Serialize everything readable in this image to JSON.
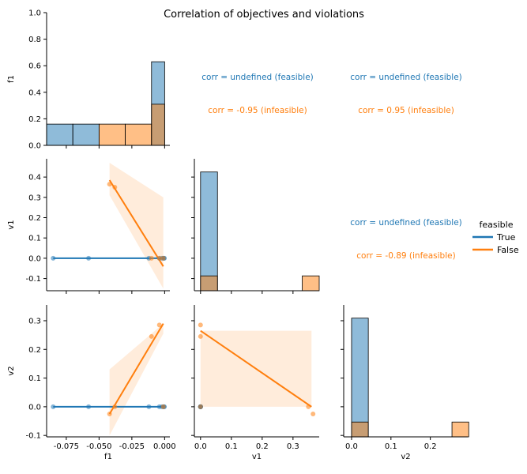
{
  "chart_data": {
    "type": "pairplot",
    "title": "Correlation of objectives and violations",
    "variables": [
      "f1",
      "v1",
      "v2"
    ],
    "legend": {
      "title": "feasible",
      "placement": "right",
      "entries": [
        {
          "label": "True",
          "color": "#1f77b4"
        },
        {
          "label": "False",
          "color": "#ff7f0e"
        }
      ]
    },
    "colors": {
      "feasible": "#1f77b4",
      "infeasible": "#ff7f0e"
    },
    "points": {
      "feasible": {
        "f1": [
          -0.085,
          -0.058,
          -0.012,
          -0.004,
          -0.002,
          -0.001,
          -0.0005,
          -0.0002
        ],
        "v1": [
          0,
          0,
          0,
          0,
          0,
          0,
          0,
          0
        ],
        "v2": [
          0,
          0,
          0,
          0,
          0,
          0,
          0,
          0
        ]
      },
      "infeasible": {
        "f1": [
          -0.042,
          -0.038,
          -0.01,
          -0.004,
          -0.001
        ],
        "v1": [
          0.365,
          0.35,
          0,
          0,
          0
        ],
        "v2": [
          -0.025,
          0.0,
          0.245,
          0.285,
          0.0
        ]
      }
    },
    "histograms": {
      "f1": {
        "bins": [
          -0.09,
          -0.07,
          -0.05,
          -0.03,
          -0.01,
          0.0
        ],
        "feasible": [
          0.16,
          0.16,
          0,
          0,
          0.63
        ],
        "infeasible": [
          0,
          0,
          0.16,
          0.16,
          0.31
        ],
        "ylim": [
          0,
          1.0
        ],
        "yticks": [
          "0.0",
          "0.2",
          "0.4",
          "0.6",
          "0.8",
          "1.0"
        ]
      },
      "v1": {
        "bins": [
          0.0,
          0.055,
          0.11,
          0.165,
          0.22,
          0.275,
          0.33,
          0.385
        ],
        "feasible": [
          8,
          0,
          0,
          0,
          0,
          0,
          0
        ],
        "infeasible": [
          1,
          0,
          0,
          0,
          0,
          0,
          1
        ]
      },
      "v2": {
        "bins": [
          0.0,
          0.0425,
          0.085,
          0.1275,
          0.17,
          0.2125,
          0.255,
          0.2975
        ],
        "feasible": [
          8,
          0,
          0,
          0,
          0,
          0,
          0
        ],
        "infeasible": [
          1,
          0,
          0,
          0,
          0,
          0,
          1
        ]
      }
    },
    "regressions": {
      "v1_vs_f1": {
        "feasible": {
          "x": [
            -0.085,
            0.0
          ],
          "y": [
            0.0,
            0.0
          ]
        },
        "infeasible": {
          "x": [
            -0.042,
            -0.001
          ],
          "y": [
            0.385,
            -0.04
          ],
          "band_upper": [
            0.47,
            0.3
          ],
          "band_lower": [
            0.31,
            -0.15
          ]
        }
      },
      "v2_vs_f1": {
        "feasible": {
          "x": [
            -0.085,
            0.0
          ],
          "y": [
            0.0,
            0.0
          ]
        },
        "infeasible": {
          "x": [
            -0.042,
            -0.001
          ],
          "y": [
            -0.025,
            0.29
          ],
          "band_upper": [
            0.13,
            0.29
          ],
          "band_lower": [
            -0.1,
            0.255
          ]
        }
      },
      "v2_vs_v1": {
        "infeasible": {
          "x": [
            0.0,
            0.36
          ],
          "y": [
            0.265,
            0.0
          ],
          "band_upper": [
            0.265,
            0.265
          ],
          "band_lower": [
            0.0,
            0.0
          ]
        }
      }
    },
    "axes": {
      "f1": {
        "label": "f1",
        "range": [
          -0.09,
          0.004
        ],
        "ticks": [
          -0.075,
          -0.05,
          -0.025,
          0.0
        ],
        "ticklabels": [
          "-0.075",
          "-0.050",
          "-0.025",
          "0.000"
        ]
      },
      "v1": {
        "label": "v1",
        "range": [
          -0.16,
          0.49
        ],
        "ticks": [
          -0.1,
          0.0,
          0.1,
          0.2,
          0.3,
          0.4
        ],
        "ticklabels": [
          "-0.1",
          "0.0",
          "0.1",
          "0.2",
          "0.3",
          "0.4"
        ],
        "xrange": [
          -0.02,
          0.385
        ],
        "xticks": [
          0.0,
          0.1,
          0.2,
          0.3
        ],
        "xticklabels": [
          "0.0",
          "0.1",
          "0.2",
          "0.3"
        ]
      },
      "v2": {
        "label": "v2",
        "range": [
          -0.105,
          0.355
        ],
        "ticks": [
          -0.1,
          0.0,
          0.1,
          0.2,
          0.3
        ],
        "ticklabels": [
          "-0.1",
          "0.0",
          "0.1",
          "0.2",
          "0.3"
        ],
        "xrange": [
          -0.02,
          0.295
        ],
        "xticks": [
          0.0,
          0.1,
          0.2
        ],
        "xticklabels": [
          "0.0",
          "0.1",
          "0.2"
        ]
      }
    },
    "annotations": [
      {
        "cell": "f1-v1",
        "feasible": "corr = undefined (feasible)",
        "infeasible": "corr = -0.95 (infeasible)"
      },
      {
        "cell": "f1-v2",
        "feasible": "corr = undefined (feasible)",
        "infeasible": "corr = 0.95 (infeasible)"
      },
      {
        "cell": "v1-v2",
        "feasible": "corr = undefined (feasible)",
        "infeasible": "corr = -0.89 (infeasible)"
      }
    ]
  }
}
